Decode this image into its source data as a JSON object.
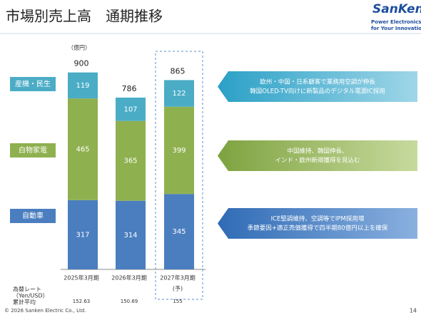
{
  "header": {
    "title": "市場別売上高　通期推移"
  },
  "logo": {
    "brand": "SanKen",
    "line1": "Power Electronics",
    "line2": "for Your Innovation"
  },
  "chart_data": {
    "type": "stacked-bar",
    "unit": "（億円）",
    "categories": [
      "2025年3月期",
      "2026年3月期",
      "2027年3月期"
    ],
    "forecast_label": "(予)",
    "series": [
      {
        "name": "自動車",
        "color": "#4a7ebf",
        "values": [
          317,
          314,
          345
        ]
      },
      {
        "name": "白物家電",
        "color": "#8fb04f",
        "values": [
          465,
          365,
          399
        ]
      },
      {
        "name": "産機・民生",
        "color": "#4bacc6",
        "values": [
          119,
          107,
          122
        ]
      }
    ],
    "totals": [
      900,
      786,
      865
    ]
  },
  "callouts": [
    {
      "lines": [
        "ICE堅調維持、空調等でIPM採用増",
        "季節要因+適正売価獲得で四半期80億円以上を確保"
      ]
    },
    {
      "lines": [
        "中国維持、韓国伸長、",
        "インド・欧州新規獲得を見込む"
      ]
    },
    {
      "lines": [
        "欧州・中国・日系顧客で業務用空調が伸長",
        "韓国OLED-TV向けに新製品のデジタル電源IC採用"
      ]
    }
  ],
  "exchange_rate": {
    "label": [
      "為替レート",
      "（Yen/USD）",
      "累計平均"
    ],
    "values": [
      152.63,
      150.69,
      155
    ]
  },
  "footer": {
    "copyright": "© 2026  Sanken Electric Co., Ltd.",
    "page": "14"
  }
}
